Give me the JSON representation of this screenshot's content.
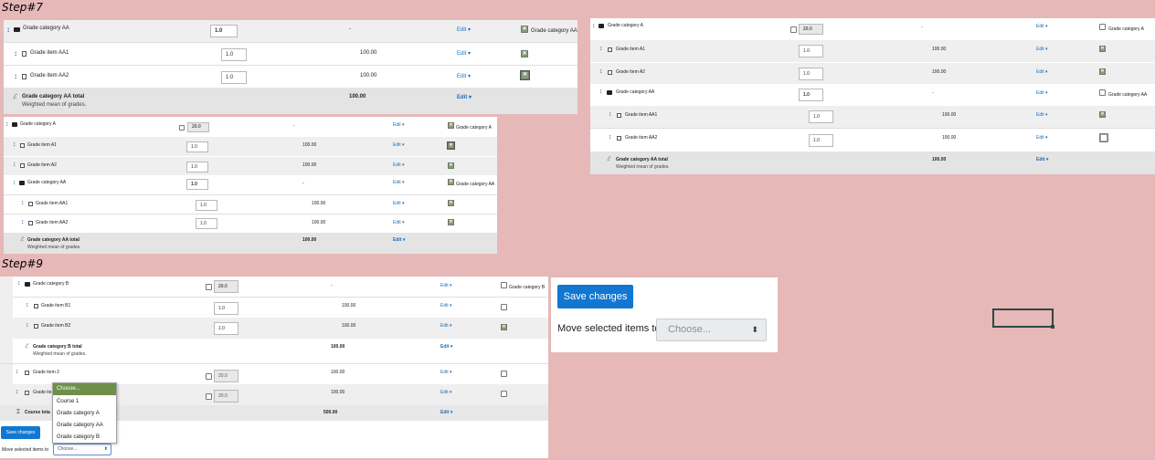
{
  "step7_label": "Step#7",
  "step9_label": "Step#9",
  "common": {
    "edit_label": "Edit ▾",
    "dash": "-",
    "weighted_label": "Weighted mean of grades.",
    "total_sym": "ℰ",
    "sum_sym": "Σ",
    "drag_sym": "↕",
    "check_sym": "✕"
  },
  "p1": {
    "cat_name": "Grade category AA",
    "cat_weight": "1.0",
    "cat_check_label": "Grade category AA",
    "item1_name": "Grade item AA1",
    "item1_weight": "1.0",
    "item1_max": "100.00",
    "item2_name": "Grade item AA2",
    "item2_weight": "1.0",
    "item2_max": "100.00",
    "total_name": "Grade category AA total",
    "total_max": "100.00"
  },
  "p2": {
    "cat_a": "Grade category A",
    "cat_a_weight": "20.0",
    "cat_a_check": "Grade category A",
    "a1": "Grade item A1",
    "a1_weight": "1.0",
    "a1_max": "100.00",
    "a2": "Grade item A2",
    "a2_weight": "1.0",
    "a2_max": "100.00",
    "cat_aa": "Grade category AA",
    "cat_aa_weight": "1.0",
    "cat_aa_check": "Grade category AA",
    "aa1": "Grade item AA1",
    "aa1_weight": "1.0",
    "aa1_max": "100.00",
    "aa2": "Grade item AA2",
    "aa2_weight": "1.0",
    "aa2_max": "100.00",
    "total_name": "Grade category AA total",
    "total_max": "100.00"
  },
  "p3": {
    "cat_a": "Grade category A",
    "cat_a_weight": "20.0",
    "cat_a_check": "Grade category A",
    "a1": "Grade item A1",
    "a1_weight": "1.0",
    "a1_max": "100.00",
    "a2": "Grade item A2",
    "a2_weight": "1.0",
    "a2_max": "100.00",
    "cat_aa": "Grade category AA",
    "cat_aa_weight": "1.0",
    "cat_aa_check": "Grade category AA",
    "aa1": "Grade item AA1",
    "aa1_weight": "1.0",
    "aa1_max": "100.00",
    "aa2": "Grade item AA2",
    "aa2_weight": "1.0",
    "aa2_max": "100.00",
    "total_name": "Grade category AA total",
    "total_max": "100.00"
  },
  "p4": {
    "cat_b": "Grade category B",
    "cat_b_weight": "20.0",
    "cat_b_check": "Grade category B",
    "b1": "Grade item B1",
    "b1_weight": "1.0",
    "b1_max": "100.00",
    "b2": "Grade item B2",
    "b2_weight": "1.0",
    "b2_max": "100.00",
    "b_total": "Grade category B total",
    "b_total_max": "100.00",
    "item2": "Grade item 2",
    "item2_weight": "20.0",
    "item2_max": "100.00",
    "item3_partial": "Grade ite",
    "item3_weight": "20.0",
    "item3_max": "100.00",
    "course_total_partial": "Course tota",
    "course_total_max": "500.00",
    "save_label": "Save changes",
    "move_label": "Move selected items to",
    "select_value": "Choose...",
    "dropdown_options": [
      "Choose...",
      "Course 1",
      "Grade category A",
      "Grade category AA",
      "Grade category B"
    ]
  },
  "p5": {
    "save_label": "Save changes",
    "move_label": "Move selected items to",
    "select_value": "Choose..."
  }
}
